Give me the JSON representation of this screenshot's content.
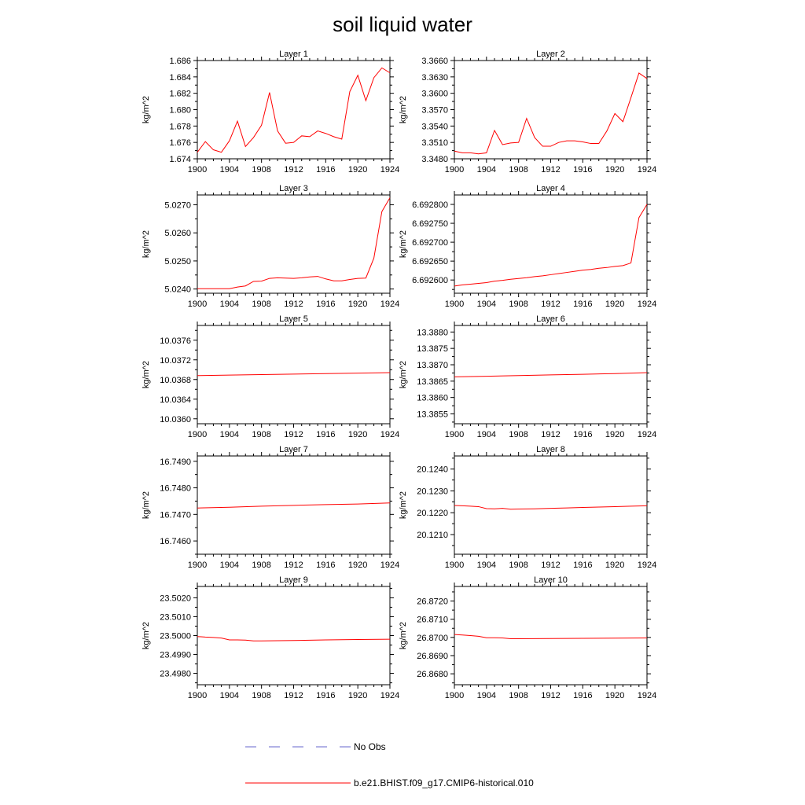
{
  "figure": {
    "title": "soil liquid water"
  },
  "legend": [
    {
      "label": "No Obs",
      "color": "#6666cc",
      "style": "dashed"
    },
    {
      "label": "b.e21.BHIST.f09_g17.CMIP6-historical.010",
      "color": "#ff0000",
      "style": "solid"
    }
  ],
  "chart_data": [
    {
      "type": "line",
      "title": "Layer 1",
      "ylabel": "kg/m^2",
      "xlim": [
        1900,
        1924
      ],
      "xticks": [
        1900,
        1904,
        1908,
        1912,
        1916,
        1920,
        1924
      ],
      "ylim": [
        1.674,
        1.686
      ],
      "yticks": [
        1.674,
        1.676,
        1.678,
        1.68,
        1.682,
        1.684,
        1.686
      ],
      "ydec": 3,
      "x": [
        1900,
        1901,
        1902,
        1903,
        1904,
        1905,
        1906,
        1907,
        1908,
        1909,
        1910,
        1911,
        1912,
        1913,
        1914,
        1915,
        1916,
        1917,
        1918,
        1919,
        1920,
        1921,
        1922,
        1923,
        1924
      ],
      "series": [
        {
          "name": "b.e21.BHIST.f09_g17.CMIP6-historical.010",
          "values": [
            1.6748,
            1.6761,
            1.6751,
            1.6748,
            1.6762,
            1.6786,
            1.6755,
            1.6766,
            1.6781,
            1.6821,
            1.6774,
            1.6759,
            1.676,
            1.6768,
            1.6767,
            1.6774,
            1.6771,
            1.6767,
            1.6764,
            1.6822,
            1.6842,
            1.6811,
            1.6839,
            1.6851,
            1.6845
          ]
        }
      ]
    },
    {
      "type": "line",
      "title": "Layer 2",
      "ylabel": "kg/m^2",
      "xlim": [
        1900,
        1924
      ],
      "xticks": [
        1900,
        1904,
        1908,
        1912,
        1916,
        1920,
        1924
      ],
      "ylim": [
        3.348,
        3.366
      ],
      "yticks": [
        3.348,
        3.351,
        3.354,
        3.357,
        3.36,
        3.363,
        3.366
      ],
      "ydec": 4,
      "x": [
        1900,
        1901,
        1902,
        1903,
        1904,
        1905,
        1906,
        1907,
        1908,
        1909,
        1910,
        1911,
        1912,
        1913,
        1914,
        1915,
        1916,
        1917,
        1918,
        1919,
        1920,
        1921,
        1922,
        1923,
        1924
      ],
      "series": [
        {
          "name": "b.e21.BHIST.f09_g17.CMIP6-historical.010",
          "values": [
            3.3494,
            3.3491,
            3.3491,
            3.3489,
            3.3491,
            3.3532,
            3.3506,
            3.3509,
            3.351,
            3.3554,
            3.3519,
            3.3503,
            3.3503,
            3.351,
            3.3513,
            3.3513,
            3.3511,
            3.3508,
            3.3508,
            3.3531,
            3.3563,
            3.3548,
            3.3592,
            3.3637,
            3.3627
          ]
        }
      ]
    },
    {
      "type": "line",
      "title": "Layer 3",
      "ylabel": "kg/m^2",
      "xlim": [
        1900,
        1924
      ],
      "xticks": [
        1900,
        1904,
        1908,
        1912,
        1916,
        1920,
        1924
      ],
      "ylim": [
        5.02385,
        5.02735
      ],
      "yticks": [
        5.024,
        5.025,
        5.026,
        5.027
      ],
      "ydec": 4,
      "x": [
        1900,
        1901,
        1902,
        1903,
        1904,
        1905,
        1906,
        1907,
        1908,
        1909,
        1910,
        1911,
        1912,
        1913,
        1914,
        1915,
        1916,
        1917,
        1918,
        1919,
        1920,
        1921,
        1922,
        1923,
        1924
      ],
      "series": [
        {
          "name": "b.e21.BHIST.f09_g17.CMIP6-historical.010",
          "values": [
            5.02401,
            5.02401,
            5.02401,
            5.02401,
            5.02401,
            5.02407,
            5.02411,
            5.02427,
            5.02428,
            5.02438,
            5.0244,
            5.02439,
            5.02438,
            5.0244,
            5.02443,
            5.02445,
            5.02436,
            5.02429,
            5.02429,
            5.02434,
            5.02438,
            5.02439,
            5.0251,
            5.02676,
            5.02725
          ]
        }
      ]
    },
    {
      "type": "line",
      "title": "Layer 4",
      "ylabel": "kg/m^2",
      "xlim": [
        1900,
        1924
      ],
      "xticks": [
        1900,
        1904,
        1908,
        1912,
        1916,
        1920,
        1924
      ],
      "ylim": [
        6.692565,
        6.692825
      ],
      "yticks": [
        6.6926,
        6.69265,
        6.6927,
        6.69275,
        6.6928
      ],
      "ydec": 6,
      "x": [
        1900,
        1901,
        1902,
        1903,
        1904,
        1905,
        1906,
        1907,
        1908,
        1909,
        1910,
        1911,
        1912,
        1913,
        1914,
        1915,
        1916,
        1917,
        1918,
        1919,
        1920,
        1921,
        1922,
        1923,
        1924
      ],
      "series": [
        {
          "name": "b.e21.BHIST.f09_g17.CMIP6-historical.010",
          "values": [
            6.692584,
            6.692587,
            6.692589,
            6.692591,
            6.692593,
            6.692597,
            6.692599,
            6.692602,
            6.692604,
            6.692606,
            6.692609,
            6.692611,
            6.692614,
            6.692617,
            6.69262,
            6.692623,
            6.692626,
            6.692628,
            6.692631,
            6.692633,
            6.692636,
            6.692638,
            6.692645,
            6.692765,
            6.6928
          ]
        }
      ]
    },
    {
      "type": "line",
      "title": "Layer 5",
      "ylabel": "kg/m^2",
      "xlim": [
        1900,
        1924
      ],
      "xticks": [
        1900,
        1904,
        1908,
        1912,
        1916,
        1920,
        1924
      ],
      "ylim": [
        10.0359,
        10.0379
      ],
      "yticks": [
        10.036,
        10.0364,
        10.0368,
        10.0372,
        10.0376
      ],
      "ydec": 4,
      "x": [
        1900,
        1904,
        1908,
        1912,
        1916,
        1920,
        1924
      ],
      "series": [
        {
          "name": "b.e21.BHIST.f09_g17.CMIP6-historical.010",
          "values": [
            10.03688,
            10.03689,
            10.0369,
            10.03691,
            10.03692,
            10.03693,
            10.03694
          ]
        }
      ]
    },
    {
      "type": "line",
      "title": "Layer 6",
      "ylabel": "kg/m^2",
      "xlim": [
        1900,
        1924
      ],
      "xticks": [
        1900,
        1904,
        1908,
        1912,
        1916,
        1920,
        1924
      ],
      "ylim": [
        13.3852,
        13.3882
      ],
      "yticks": [
        13.3855,
        13.386,
        13.3865,
        13.387,
        13.3875,
        13.388
      ],
      "ydec": 4,
      "x": [
        1900,
        1904,
        1908,
        1912,
        1916,
        1920,
        1924
      ],
      "series": [
        {
          "name": "b.e21.BHIST.f09_g17.CMIP6-historical.010",
          "values": [
            13.38663,
            13.38665,
            13.38667,
            13.38669,
            13.38671,
            13.38673,
            13.38676
          ]
        }
      ]
    },
    {
      "type": "line",
      "title": "Layer 7",
      "ylabel": "kg/m^2",
      "xlim": [
        1900,
        1924
      ],
      "xticks": [
        1900,
        1904,
        1908,
        1912,
        1916,
        1920,
        1924
      ],
      "ylim": [
        16.7455,
        16.7492
      ],
      "yticks": [
        16.746,
        16.747,
        16.748,
        16.749
      ],
      "ydec": 4,
      "x": [
        1900,
        1904,
        1908,
        1912,
        1916,
        1920,
        1924
      ],
      "series": [
        {
          "name": "b.e21.BHIST.f09_g17.CMIP6-historical.010",
          "values": [
            16.74724,
            16.74727,
            16.74731,
            16.74734,
            16.74737,
            16.74739,
            16.74743
          ]
        }
      ]
    },
    {
      "type": "line",
      "title": "Layer 8",
      "ylabel": "kg/m^2",
      "xlim": [
        1900,
        1924
      ],
      "xticks": [
        1900,
        1904,
        1908,
        1912,
        1916,
        1920,
        1924
      ],
      "ylim": [
        20.1201,
        20.1246
      ],
      "yticks": [
        20.121,
        20.122,
        20.123,
        20.124
      ],
      "ydec": 4,
      "x": [
        1900,
        1901,
        1902,
        1903,
        1904,
        1905,
        1906,
        1907,
        1908,
        1910,
        1912,
        1914,
        1916,
        1918,
        1920,
        1922,
        1924
      ],
      "series": [
        {
          "name": "b.e21.BHIST.f09_g17.CMIP6-historical.010",
          "values": [
            20.12233,
            20.12232,
            20.1223,
            20.12228,
            20.12219,
            20.12218,
            20.1222,
            20.12216,
            20.12217,
            20.12218,
            20.1222,
            20.12222,
            20.12224,
            20.12226,
            20.12228,
            20.1223,
            20.12232
          ]
        }
      ]
    },
    {
      "type": "line",
      "title": "Layer 9",
      "ylabel": "kg/m^2",
      "xlim": [
        1900,
        1924
      ],
      "xticks": [
        1900,
        1904,
        1908,
        1912,
        1916,
        1920,
        1924
      ],
      "ylim": [
        23.4974,
        23.5026
      ],
      "yticks": [
        23.498,
        23.499,
        23.5,
        23.501,
        23.502
      ],
      "ydec": 4,
      "x": [
        1900,
        1901,
        1902,
        1903,
        1904,
        1905,
        1906,
        1907,
        1908,
        1912,
        1916,
        1920,
        1924
      ],
      "series": [
        {
          "name": "b.e21.BHIST.f09_g17.CMIP6-historical.010",
          "values": [
            23.49995,
            23.49992,
            23.4999,
            23.49987,
            23.49977,
            23.49977,
            23.49976,
            23.49972,
            23.49972,
            23.49974,
            23.49977,
            23.49979,
            23.49981
          ]
        }
      ]
    },
    {
      "type": "line",
      "title": "Layer 10",
      "ylabel": "kg/m^2",
      "xlim": [
        1900,
        1924
      ],
      "xticks": [
        1900,
        1904,
        1908,
        1912,
        1916,
        1920,
        1924
      ],
      "ylim": [
        26.8674,
        26.8728
      ],
      "yticks": [
        26.868,
        26.869,
        26.87,
        26.871,
        26.872
      ],
      "ydec": 4,
      "x": [
        1900,
        1901,
        1902,
        1903,
        1904,
        1905,
        1906,
        1907,
        1908,
        1912,
        1916,
        1920,
        1924
      ],
      "series": [
        {
          "name": "b.e21.BHIST.f09_g17.CMIP6-historical.010",
          "values": [
            26.87016,
            26.87013,
            26.8701,
            26.87006,
            26.86998,
            26.86998,
            26.86997,
            26.86993,
            26.86993,
            26.86994,
            26.86995,
            26.86996,
            26.86997
          ]
        }
      ]
    }
  ]
}
